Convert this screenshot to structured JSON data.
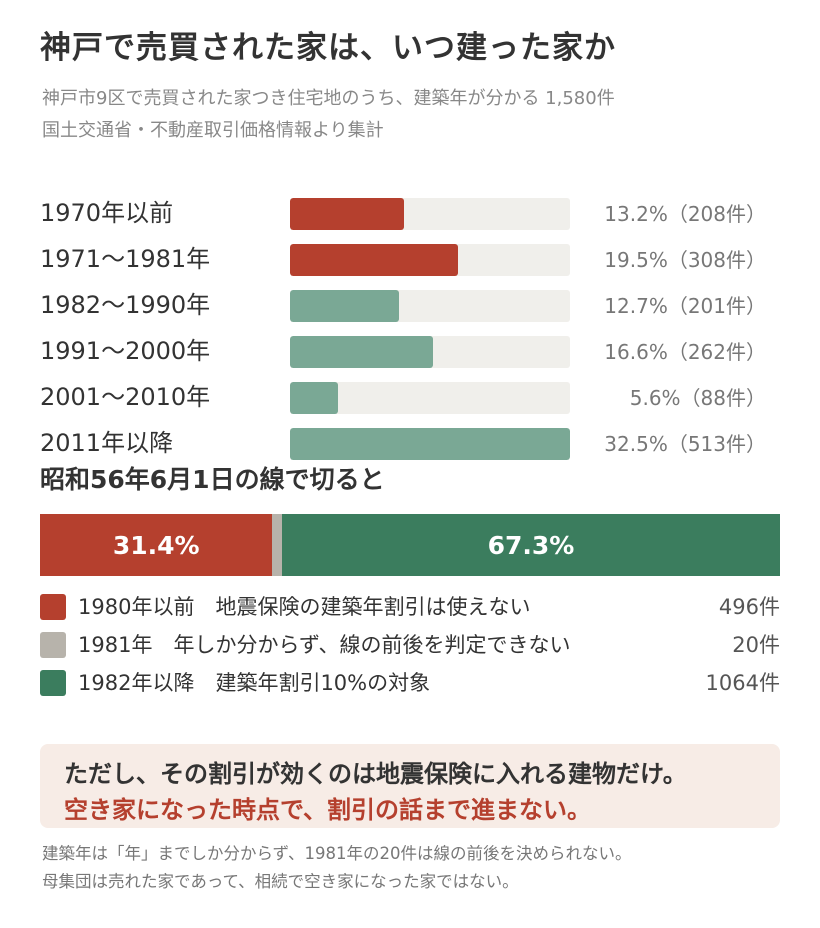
{
  "title": "神戸で売買された家は、いつ建った家か",
  "subtitle_lines": [
    "神戸市9区で売買された家つき住宅地のうち、建築年が分かる 1,580件",
    "国土交通省・不動産取引価格情報より集計"
  ],
  "colors": {
    "red": "#b5402e",
    "light_green": "#7aa895",
    "dark_green": "#3b7d5e",
    "gray": "#b7b3ab",
    "track": "#f0efeb"
  },
  "chart_data": [
    {
      "type": "bar",
      "orientation": "horizontal",
      "xlim": [
        0,
        32.5
      ],
      "categories": [
        "1970年以前",
        "1971〜1981年",
        "1982〜1990年",
        "1991〜2000年",
        "2001〜2010年",
        "2011年以降"
      ],
      "values": [
        13.2,
        19.5,
        12.7,
        16.6,
        5.6,
        32.5
      ],
      "counts": [
        208,
        308,
        201,
        262,
        88,
        513
      ],
      "value_labels": [
        "13.2%（208件）",
        "19.5%（308件）",
        "12.7%（201件）",
        "16.6%（262件）",
        "5.6%（88件）",
        "32.5%（513件）"
      ],
      "bar_colors": [
        "#b5402e",
        "#b5402e",
        "#7aa895",
        "#7aa895",
        "#7aa895",
        "#7aa895"
      ]
    },
    {
      "type": "bar",
      "orientation": "stacked-horizontal",
      "title": "昭和56年6月1日の線で切ると",
      "categories": [
        "1980年以前",
        "1981年",
        "1982年以降"
      ],
      "values": [
        31.4,
        1.3,
        67.3
      ],
      "segment_labels": [
        "31.4%",
        "",
        "67.3%"
      ],
      "segment_colors": [
        "#b5402e",
        "#b7b3ab",
        "#3b7d5e"
      ],
      "legend": [
        {
          "label": "1980年以前　地震保険の建築年割引は使えない",
          "count": "496件",
          "color": "#b5402e"
        },
        {
          "label": "1981年　年しか分からず、線の前後を判定できない",
          "count": "20件",
          "color": "#b7b3ab"
        },
        {
          "label": "1982年以降　建築年割引10%の対象",
          "count": "1064件",
          "color": "#3b7d5e"
        }
      ]
    }
  ],
  "callout": {
    "line1": "ただし、その割引が効くのは地震保険に入れる建物だけ。",
    "line2": "空き家になった時点で、割引の話まで進まない。"
  },
  "footnotes": [
    "建築年は「年」までしか分からず、1981年の20件は線の前後を決められない。",
    "母集団は売れた家であって、相続で空き家になった家ではない。"
  ]
}
